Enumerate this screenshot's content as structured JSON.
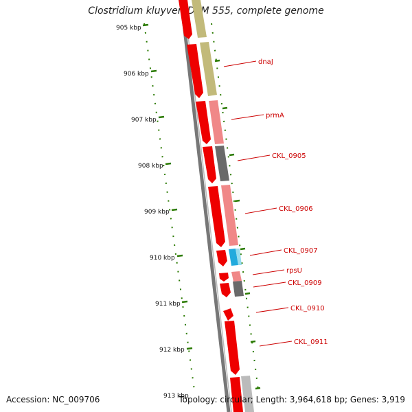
{
  "title": "Clostridium kluyveri DSM 555, complete genome",
  "footer": {
    "accession": "Accession: NC_009706",
    "stats": "Topology: circular; Length: 3,964,618 bp; Genes: 3,919"
  },
  "ticks": [
    "905 kbp",
    "906 kbp",
    "907 kbp",
    "908 kbp",
    "909 kbp",
    "910 kbp",
    "911 kbp",
    "912 kbp",
    "913 kbp"
  ],
  "gene_labels": [
    "dnaJ",
    "prmA",
    "CKL_0905",
    "CKL_0906",
    "CKL_0907",
    "rpsU",
    "CKL_0909",
    "CKL_0910",
    "CKL_0911"
  ],
  "colors": {
    "cds": "#ee0000",
    "backbone": "#777777",
    "tick": "#2a7a00",
    "label": "#cc0000",
    "olive": "#c2ba7a",
    "pink": "#f08888",
    "dark_gray": "#6a6a6a",
    "cyan": "#22aadd",
    "light_gray": "#bbbbbb"
  }
}
